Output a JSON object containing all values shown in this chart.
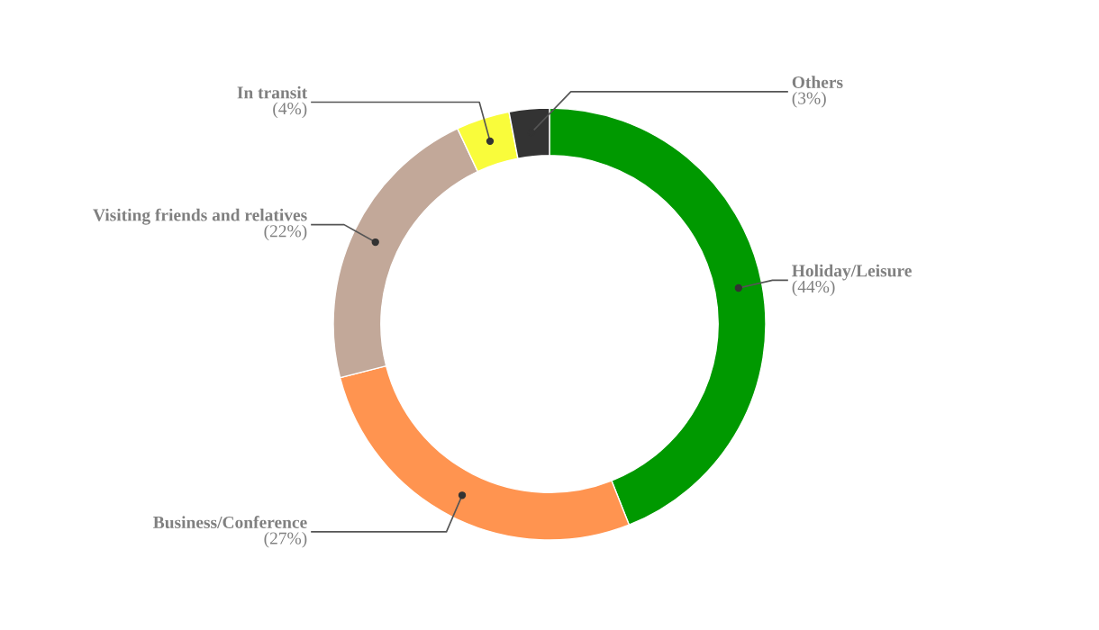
{
  "chart_data": {
    "type": "donut",
    "categories": [
      "Holiday/Leisure",
      "Business/Conference",
      "Visiting friends and relatives",
      "In transit",
      "Others"
    ],
    "values": [
      44,
      27,
      22,
      4,
      3
    ],
    "colors": [
      "#009900",
      "#ff9450",
      "#c2a899",
      "#f9fc3b",
      "#333333"
    ],
    "value_labels": [
      "(44%)",
      "(27%)",
      "(22%)",
      "(4%)",
      "(3%)"
    ]
  }
}
